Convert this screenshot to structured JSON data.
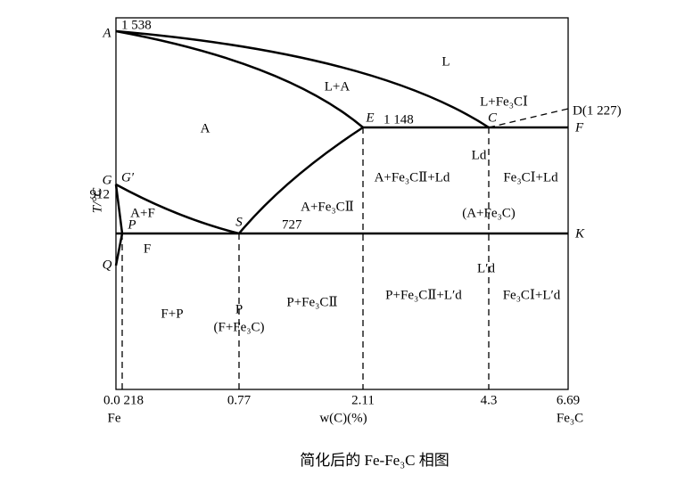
{
  "points": {
    "A": "A",
    "temp_A": "1 538",
    "E": "E",
    "temp_E": "1 148",
    "C": "C",
    "D": "D(1 227)",
    "F": "F",
    "G": "G",
    "G_prime": "G′",
    "temp_G": "912",
    "S": "S",
    "temp_S": "727",
    "P": "P",
    "K": "K",
    "Q": "Q"
  },
  "phases": [
    "L",
    "L+A",
    "A",
    "L+Fe₃CⅠ",
    "Ld",
    "A+Fe₃CⅡ+Ld",
    "Fe₃CⅠ+Ld",
    "(A+Fe₃C)",
    "A+Fe₃CⅡ",
    "A+F",
    "F",
    "L′d",
    "F+P",
    "P",
    "(F+Fe₃C)",
    "P+Fe₃CⅡ",
    "P+Fe₃CⅡ+L′d",
    "Fe₃CⅠ+L′d"
  ],
  "axis": {
    "y_label": "T/°C",
    "x_label": "w(C)(%)",
    "x_ticks": [
      "0.0 218",
      "0.77",
      "2.11",
      "4.3",
      "6.69"
    ],
    "left_end": "Fe",
    "right_end": "Fe₃C"
  },
  "caption": "简化后的 Fe-Fe₃C 相图"
}
